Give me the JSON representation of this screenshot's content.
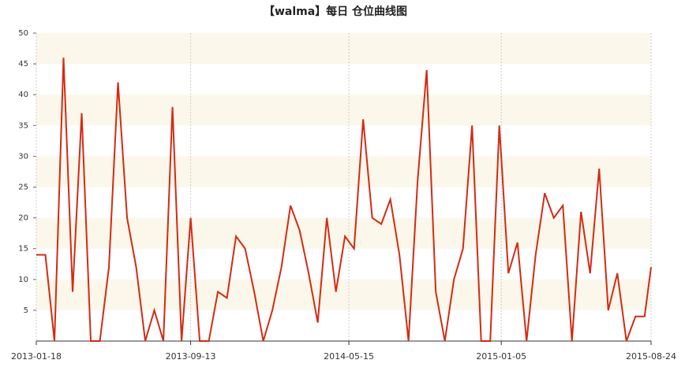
{
  "chart_data": {
    "type": "line",
    "title": "【walma】每日 仓位曲线图",
    "x": [
      "2013-01-18",
      "2013-02-01",
      "2013-02-15",
      "2013-03-01",
      "2013-03-15",
      "2013-03-29",
      "2013-04-12",
      "2013-04-26",
      "2013-05-10",
      "2013-05-24",
      "2013-06-07",
      "2013-06-21",
      "2013-07-05",
      "2013-07-19",
      "2013-08-02",
      "2013-08-16",
      "2013-08-30",
      "2013-09-13",
      "2013-09-27",
      "2013-10-11",
      "2013-10-25",
      "2013-11-08",
      "2013-11-22",
      "2013-12-06",
      "2013-12-20",
      "2014-01-03",
      "2014-01-17",
      "2014-01-31",
      "2014-02-14",
      "2014-02-28",
      "2014-03-14",
      "2014-03-28",
      "2014-04-11",
      "2014-04-25",
      "2014-05-09",
      "2014-05-23",
      "2014-06-06",
      "2014-06-20",
      "2014-07-04",
      "2014-07-18",
      "2014-08-01",
      "2014-08-15",
      "2014-08-29",
      "2014-09-12",
      "2014-09-26",
      "2014-10-10",
      "2014-10-24",
      "2014-11-07",
      "2014-11-21",
      "2014-12-05",
      "2014-12-19",
      "2015-01-02",
      "2015-01-16",
      "2015-01-30",
      "2015-02-13",
      "2015-02-27",
      "2015-03-13",
      "2015-03-27",
      "2015-04-10",
      "2015-04-24",
      "2015-05-08",
      "2015-05-22",
      "2015-06-05",
      "2015-06-19",
      "2015-07-03",
      "2015-07-17",
      "2015-07-31",
      "2015-08-14",
      "2015-08-24"
    ],
    "series": [
      {
        "color": "#d42a14",
        "values": [
          14,
          14,
          0,
          46,
          8,
          37,
          0,
          0,
          12,
          42,
          20,
          12,
          0,
          5,
          0,
          38,
          0,
          20,
          0,
          0,
          8,
          7,
          17,
          15,
          8,
          0,
          5,
          12,
          22,
          18,
          11,
          3,
          20,
          8,
          17,
          15,
          36,
          20,
          19,
          23,
          14,
          0,
          26,
          44,
          8,
          0,
          10,
          15,
          35,
          0,
          0,
          35,
          11,
          16,
          0,
          14,
          24,
          20,
          22,
          0,
          21,
          11,
          28,
          5,
          11,
          0,
          4,
          4,
          12
        ]
      }
    ],
    "xlim": [
      "2013-01-18",
      "2015-08-24"
    ],
    "xticks": [
      "2013-01-18",
      "2013-09-13",
      "2014-05-15",
      "2015-01-05",
      "2015-08-24"
    ],
    "ylim": [
      0,
      50
    ],
    "yticks": [
      5,
      10,
      15,
      20,
      25,
      30,
      35,
      40,
      45,
      50
    ],
    "grid": true
  }
}
